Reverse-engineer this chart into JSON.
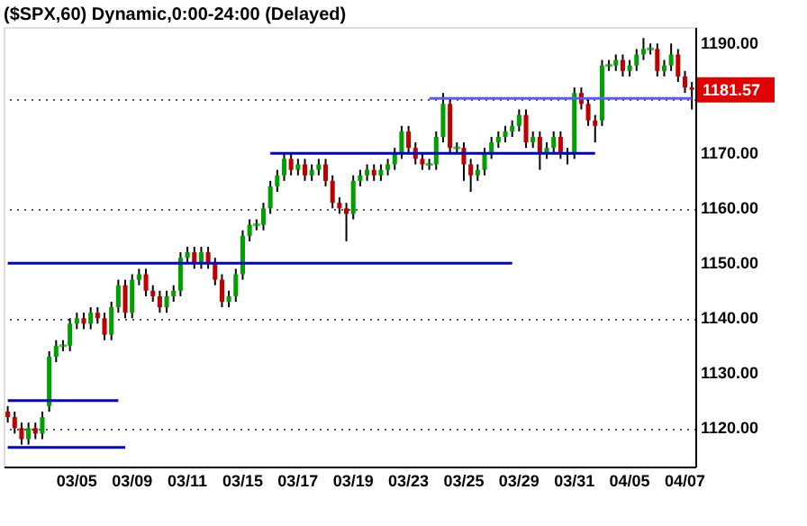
{
  "chart_data": {
    "type": "candlestick",
    "title": "($SPX,60) Dynamic,0:00-24:00 (Delayed)",
    "categories": [
      null,
      null,
      null,
      null,
      null,
      null,
      null,
      null,
      null,
      null,
      "03/05",
      null,
      null,
      null,
      null,
      null,
      null,
      null,
      "03/09",
      null,
      null,
      null,
      null,
      null,
      null,
      null,
      "03/11",
      null,
      null,
      null,
      null,
      null,
      null,
      null,
      "03/15",
      null,
      null,
      null,
      null,
      null,
      null,
      null,
      "03/17",
      null,
      null,
      null,
      null,
      null,
      null,
      null,
      "03/19",
      null,
      null,
      null,
      null,
      null,
      null,
      null,
      "03/23",
      null,
      null,
      null,
      null,
      null,
      null,
      null,
      "03/25",
      null,
      null,
      null,
      null,
      null,
      null,
      null,
      "03/29",
      null,
      null,
      null,
      null,
      null,
      null,
      null,
      "03/31",
      null,
      null,
      null,
      null,
      null,
      null,
      null,
      "04/05",
      null,
      null,
      null,
      null,
      null,
      null,
      null,
      "04/07",
      null
    ],
    "ohlc": [
      [
        1123,
        1124,
        1121,
        1122
      ],
      [
        1122,
        1123,
        1119,
        1120
      ],
      [
        1120,
        1121,
        1117,
        1118
      ],
      [
        1118,
        1121,
        1117,
        1120
      ],
      [
        1120,
        1121,
        1118,
        1119
      ],
      [
        1119,
        1123,
        1118,
        1122
      ],
      [
        1124,
        1134,
        1123,
        1133
      ],
      [
        1133,
        1136,
        1132,
        1135
      ],
      [
        1135,
        1136,
        1134,
        1135
      ],
      [
        1135,
        1140,
        1134,
        1139
      ],
      [
        1139,
        1141,
        1138,
        1140
      ],
      [
        1140,
        1141,
        1138,
        1139
      ],
      [
        1139,
        1142,
        1138,
        1141
      ],
      [
        1141,
        1142,
        1139,
        1140
      ],
      [
        1140,
        1141,
        1136,
        1137
      ],
      [
        1137,
        1143,
        1136,
        1142
      ],
      [
        1142,
        1147,
        1141,
        1146
      ],
      [
        1146,
        1147,
        1140,
        1141
      ],
      [
        1141,
        1148,
        1140,
        1147
      ],
      [
        1147,
        1149,
        1146,
        1148
      ],
      [
        1148,
        1149,
        1144,
        1145
      ],
      [
        1145,
        1146,
        1143,
        1144
      ],
      [
        1144,
        1145,
        1141,
        1142
      ],
      [
        1142,
        1145,
        1141,
        1144
      ],
      [
        1144,
        1146,
        1143,
        1145
      ],
      [
        1145,
        1152,
        1144,
        1151
      ],
      [
        1151,
        1153,
        1150,
        1152
      ],
      [
        1152,
        1153,
        1149,
        1150
      ],
      [
        1150,
        1153,
        1149,
        1152
      ],
      [
        1152,
        1153,
        1149,
        1150
      ],
      [
        1150,
        1151,
        1146,
        1147
      ],
      [
        1147,
        1148,
        1142,
        1143
      ],
      [
        1143,
        1145,
        1142,
        1144
      ],
      [
        1144,
        1149,
        1143,
        1148
      ],
      [
        1148,
        1156,
        1147,
        1155
      ],
      [
        1155,
        1158,
        1154,
        1157
      ],
      [
        1157,
        1158,
        1156,
        1157
      ],
      [
        1157,
        1161,
        1156,
        1160
      ],
      [
        1160,
        1165,
        1159,
        1164
      ],
      [
        1164,
        1167,
        1163,
        1166
      ],
      [
        1166,
        1170,
        1165,
        1169
      ],
      [
        1169,
        1170,
        1166,
        1167
      ],
      [
        1167,
        1169,
        1166,
        1168
      ],
      [
        1168,
        1169,
        1165,
        1166
      ],
      [
        1166,
        1168,
        1165,
        1167
      ],
      [
        1167,
        1169,
        1166,
        1168
      ],
      [
        1168,
        1169,
        1164,
        1165
      ],
      [
        1165,
        1166,
        1160,
        1161
      ],
      [
        1161,
        1162,
        1159,
        1160
      ],
      [
        1160,
        1161,
        1154,
        1159
      ],
      [
        1159,
        1166,
        1158,
        1165
      ],
      [
        1165,
        1167,
        1164,
        1166
      ],
      [
        1166,
        1168,
        1165,
        1167
      ],
      [
        1167,
        1168,
        1165,
        1166
      ],
      [
        1166,
        1168,
        1165,
        1167
      ],
      [
        1167,
        1169,
        1166,
        1168
      ],
      [
        1168,
        1171,
        1167,
        1170
      ],
      [
        1170,
        1175,
        1169,
        1174
      ],
      [
        1174,
        1175,
        1170,
        1171
      ],
      [
        1171,
        1172,
        1168,
        1169
      ],
      [
        1169,
        1170,
        1167,
        1168
      ],
      [
        1168,
        1169,
        1167,
        1168
      ],
      [
        1168,
        1174,
        1167,
        1173
      ],
      [
        1173,
        1181,
        1172,
        1179
      ],
      [
        1179,
        1180,
        1170,
        1171
      ],
      [
        1171,
        1172,
        1170,
        1171
      ],
      [
        1171,
        1172,
        1165,
        1168
      ],
      [
        1168,
        1169,
        1163,
        1166
      ],
      [
        1166,
        1168,
        1165,
        1167
      ],
      [
        1167,
        1171,
        1166,
        1170
      ],
      [
        1170,
        1173,
        1169,
        1172
      ],
      [
        1172,
        1174,
        1171,
        1173
      ],
      [
        1173,
        1175,
        1172,
        1174
      ],
      [
        1174,
        1176,
        1173,
        1175
      ],
      [
        1175,
        1178,
        1174,
        1177
      ],
      [
        1177,
        1178,
        1171,
        1172
      ],
      [
        1172,
        1174,
        1171,
        1173
      ],
      [
        1173,
        1174,
        1167,
        1170
      ],
      [
        1170,
        1172,
        1169,
        1171
      ],
      [
        1171,
        1174,
        1170,
        1173
      ],
      [
        1173,
        1174,
        1169,
        1170
      ],
      [
        1170,
        1171,
        1168,
        1170
      ],
      [
        1170,
        1182,
        1169,
        1181
      ],
      [
        1181,
        1182,
        1178,
        1179
      ],
      [
        1179,
        1180,
        1175,
        1176
      ],
      [
        1176,
        1177,
        1172,
        1175
      ],
      [
        1176,
        1187,
        1175,
        1186
      ],
      [
        1186,
        1187,
        1185,
        1186
      ],
      [
        1186,
        1188,
        1185,
        1187
      ],
      [
        1187,
        1188,
        1184,
        1185
      ],
      [
        1185,
        1187,
        1184,
        1186
      ],
      [
        1186,
        1189,
        1185,
        1188
      ],
      [
        1188,
        1191,
        1187,
        1189
      ],
      [
        1189,
        1190,
        1188,
        1189
      ],
      [
        1189,
        1190,
        1184,
        1185
      ],
      [
        1185,
        1187,
        1184,
        1186
      ],
      [
        1186,
        1190,
        1185,
        1188
      ],
      [
        1188,
        1189,
        1183,
        1184
      ],
      [
        1184,
        1185,
        1181,
        1182
      ],
      [
        1182,
        1183,
        1178,
        1181.57
      ]
    ],
    "colors": [
      "#c00000",
      "#c00000",
      "#c00000",
      "#00a000",
      "#c00000",
      "#00a000",
      "#00a000",
      "#00a000",
      "#00a000",
      "#00a000",
      "#00a000",
      "#c00000",
      "#00a000",
      "#c00000",
      "#c00000",
      "#00a000",
      "#00a000",
      "#c00000",
      "#00a000",
      "#00a000",
      "#c00000",
      "#c00000",
      "#c00000",
      "#00a000",
      "#00a000",
      "#00a000",
      "#00a000",
      "#c00000",
      "#00a000",
      "#c00000",
      "#c00000",
      "#c00000",
      "#00a000",
      "#00a000",
      "#00a000",
      "#00a000",
      "#00a000",
      "#00a000",
      "#00a000",
      "#00a000",
      "#00a000",
      "#c00000",
      "#00a000",
      "#c00000",
      "#00a000",
      "#00a000",
      "#c00000",
      "#c00000",
      "#c00000",
      "#c00000",
      "#00a000",
      "#00a000",
      "#00a000",
      "#c00000",
      "#00a000",
      "#00a000",
      "#00a000",
      "#00a000",
      "#c00000",
      "#c00000",
      "#c00000",
      "#00a000",
      "#00a000",
      "#00a000",
      "#c00000",
      "#00a000",
      "#c00000",
      "#c00000",
      "#00a000",
      "#00a000",
      "#00a000",
      "#00a000",
      "#00a000",
      "#00a000",
      "#00a000",
      "#c00000",
      "#00a000",
      "#c00000",
      "#00a000",
      "#00a000",
      "#c00000",
      "#00a000",
      "#00a000",
      "#c00000",
      "#c00000",
      "#c00000",
      "#00a000",
      "#00a000",
      "#00a000",
      "#c00000",
      "#00a000",
      "#00a000",
      "#00a000",
      "#00a000",
      "#c00000",
      "#00a000",
      "#00a000",
      "#c00000",
      "#c00000",
      "#c00000"
    ],
    "series": [
      {
        "type": "line",
        "color": "#0000cc",
        "values": [
          1116.5,
          1116.5,
          1116.5,
          1116.5,
          1116.5,
          1116.5,
          1116.5,
          1116.5,
          1116.5,
          1116.5,
          1116.5,
          1116.5,
          1116.5,
          1116.5,
          1116.5,
          1116.5,
          1116.5,
          1116.5,
          null,
          null,
          null,
          null,
          null,
          null,
          null,
          null,
          null,
          null,
          null,
          null,
          null,
          null,
          null,
          null,
          null,
          null,
          null,
          null,
          null,
          null,
          null,
          null,
          null,
          null,
          null,
          null,
          null,
          null,
          null,
          null,
          null,
          null,
          null,
          null,
          null,
          null,
          null,
          null,
          null,
          null,
          null,
          null,
          null,
          null,
          null,
          null,
          null,
          null,
          null,
          null,
          null,
          null,
          null,
          null,
          null,
          null,
          null,
          null,
          null,
          null,
          null,
          null,
          null,
          null,
          null,
          null,
          null,
          null,
          null,
          null,
          null,
          null,
          null,
          null,
          null,
          null,
          null,
          null,
          null,
          null
        ]
      },
      {
        "type": "line",
        "color": "#0000cc",
        "values": [
          1125,
          1125,
          1125,
          1125,
          1125,
          1125,
          1125,
          1125,
          1125,
          1125,
          1125,
          1125,
          1125,
          1125,
          1125,
          1125,
          1125,
          null,
          null,
          null,
          null,
          null,
          null,
          null,
          null,
          null,
          null,
          null,
          null,
          null,
          null,
          null,
          null,
          null,
          null,
          null,
          null,
          null,
          null,
          null,
          null,
          null,
          null,
          null,
          null,
          null,
          null,
          null,
          null,
          null,
          null,
          null,
          null,
          null,
          null,
          null,
          null,
          null,
          null,
          null,
          null,
          null,
          null,
          null,
          null,
          null,
          null,
          null,
          null,
          null,
          null,
          null,
          null,
          null,
          null,
          null,
          null,
          null,
          null,
          null,
          null,
          null,
          null,
          null,
          null,
          null,
          null,
          null,
          null,
          null,
          null,
          null,
          null,
          null,
          null,
          null,
          null,
          null,
          null,
          null
        ]
      },
      {
        "type": "line",
        "color": "#0000cc",
        "values": [
          1150,
          1150,
          1150,
          1150,
          1150,
          1150,
          1150,
          1150,
          1150,
          1150,
          1150,
          1150,
          1150,
          1150,
          1150,
          1150,
          1150,
          1150,
          1150,
          1150,
          1150,
          1150,
          1150,
          1150,
          1150,
          1150,
          1150,
          1150,
          1150,
          1150,
          1150,
          1150,
          1150,
          1150,
          1150,
          1150,
          1150,
          1150,
          1150,
          1150,
          1150,
          1150,
          1150,
          1150,
          1150,
          1150,
          1150,
          1150,
          1150,
          1150,
          1150,
          1150,
          1150,
          1150,
          1150,
          1150,
          1150,
          1150,
          1150,
          1150,
          1150,
          1150,
          1150,
          1150,
          1150,
          1150,
          1150,
          1150,
          1150,
          1150,
          1150,
          1150,
          1150,
          1150,
          null,
          null,
          null,
          null,
          null,
          null,
          null,
          null,
          null,
          null,
          null,
          null,
          null,
          null,
          null,
          null,
          null,
          null,
          null,
          null,
          null,
          null,
          null,
          null,
          null,
          null
        ]
      },
      {
        "type": "line",
        "color": "#0000cc",
        "values": [
          null,
          null,
          null,
          null,
          null,
          null,
          null,
          null,
          null,
          null,
          null,
          null,
          null,
          null,
          null,
          null,
          null,
          null,
          null,
          null,
          null,
          null,
          null,
          null,
          null,
          null,
          null,
          null,
          null,
          null,
          null,
          null,
          null,
          null,
          null,
          null,
          null,
          null,
          1170,
          1170,
          1170,
          1170,
          1170,
          1170,
          1170,
          1170,
          1170,
          1170,
          1170,
          1170,
          1170,
          1170,
          1170,
          1170,
          1170,
          1170,
          1170,
          1170,
          1170,
          1170,
          1170,
          1170,
          1170,
          1170,
          1170,
          1170,
          1170,
          1170,
          1170,
          1170,
          1170,
          1170,
          1170,
          1170,
          1170,
          1170,
          1170,
          1170,
          1170,
          1170,
          1170,
          1170,
          1170,
          1170,
          1170,
          1170,
          null,
          null,
          null,
          null,
          null,
          null,
          null,
          null,
          null,
          null,
          null,
          null,
          null,
          null
        ]
      },
      {
        "type": "line",
        "color": "#5a5aff",
        "values": [
          null,
          null,
          null,
          null,
          null,
          null,
          null,
          null,
          null,
          null,
          null,
          null,
          null,
          null,
          null,
          null,
          null,
          null,
          null,
          null,
          null,
          null,
          null,
          null,
          null,
          null,
          null,
          null,
          null,
          null,
          null,
          null,
          null,
          null,
          null,
          null,
          null,
          null,
          null,
          null,
          null,
          null,
          null,
          null,
          null,
          null,
          null,
          null,
          null,
          null,
          null,
          null,
          null,
          null,
          null,
          null,
          null,
          null,
          null,
          null,
          null,
          1180,
          1180,
          1180,
          1180,
          1180,
          1180,
          1180,
          1180,
          1180,
          1180,
          1180,
          1180,
          1180,
          1180,
          1180,
          1180,
          1180,
          1180,
          1180,
          1180,
          1180,
          1180,
          1180,
          1180,
          1180,
          1180,
          1180,
          1180,
          1180,
          1180,
          1180,
          1180,
          1180,
          1180,
          1180,
          1180,
          1180,
          1180,
          1180
        ]
      }
    ],
    "ylim": [
      1113,
      1193
    ],
    "yticks": [
      {
        "value": 1120,
        "label": "1120.00"
      },
      {
        "value": 1130,
        "label": "1130.00"
      },
      {
        "value": 1140,
        "label": "1140.00"
      },
      {
        "value": 1150,
        "label": "1150.00"
      },
      {
        "value": 1160,
        "label": "1160.00"
      },
      {
        "value": 1170,
        "label": "1170.00"
      },
      {
        "value": 1180,
        "label": null
      },
      {
        "value": 1190,
        "label": "1190.00"
      }
    ],
    "annotations": [
      "1181.57"
    ],
    "grid": "y"
  }
}
